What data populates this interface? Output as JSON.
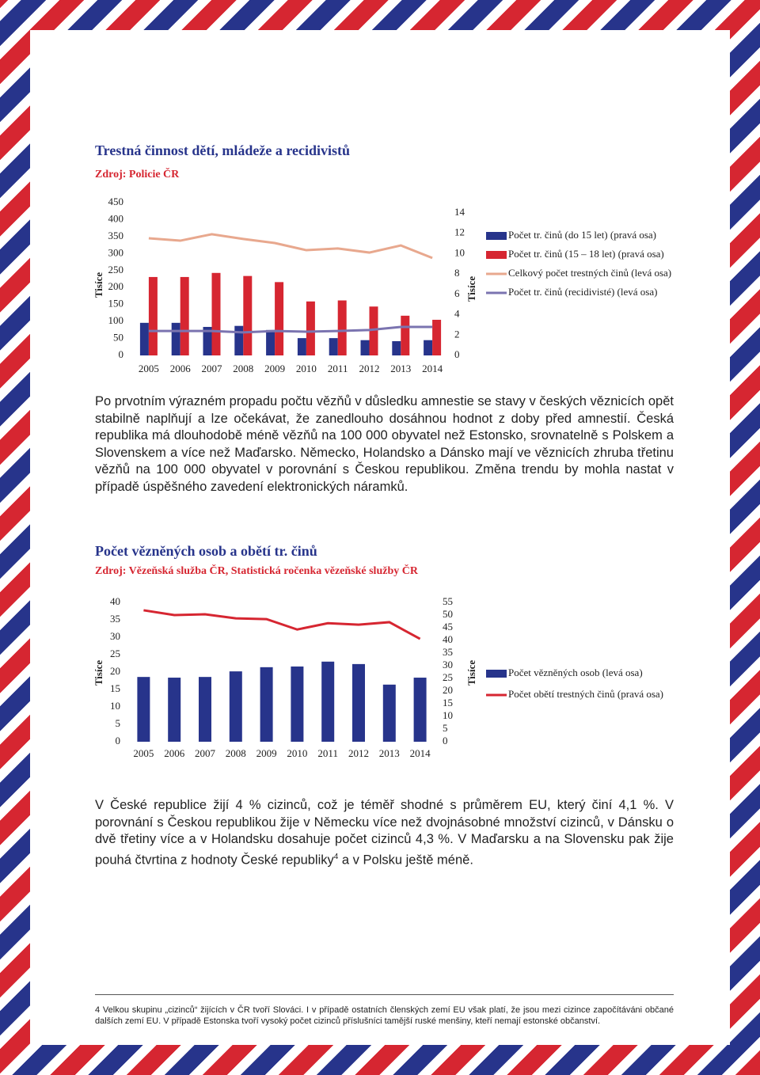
{
  "chart_data": [
    {
      "type": "bar",
      "title": "Trestná činnost dětí, mládeže a recidivistů",
      "subtitle": "Zdroj: Policie ČR",
      "categories": [
        "2005",
        "2006",
        "2007",
        "2008",
        "2009",
        "2010",
        "2011",
        "2012",
        "2013",
        "2014"
      ],
      "ylabel": "Tisíce",
      "y2label": "Tisíce",
      "ylim": [
        0,
        450
      ],
      "yticks": [
        0,
        50,
        100,
        150,
        200,
        250,
        300,
        350,
        400,
        450
      ],
      "y2lim": [
        0,
        15
      ],
      "y2ticks": [
        0,
        2,
        4,
        6,
        8,
        10,
        12,
        14
      ],
      "series": [
        {
          "name": "Počet tr. činů (do 15 let) (pravá osa)",
          "type": "bar",
          "axis": "y2",
          "color": "#27348b",
          "values": [
            3.2,
            3.2,
            2.8,
            2.9,
            2.5,
            1.7,
            1.7,
            1.5,
            1.4,
            1.5
          ]
        },
        {
          "name": "Počet tr. činů (15 – 18 let) (pravá osa)",
          "type": "bar",
          "axis": "y2",
          "color": "#d62631",
          "values": [
            7.7,
            7.7,
            8.1,
            7.8,
            7.2,
            5.3,
            5.4,
            4.8,
            3.9,
            3.5
          ]
        },
        {
          "name": "Celkový počet trestných činů (levá osa)",
          "type": "line",
          "color": "#e8a88e",
          "values": [
            345,
            338,
            357,
            343,
            331,
            310,
            315,
            303,
            324,
            287
          ]
        },
        {
          "name": "Počet tr. činů (recidivisté) (levá osa)",
          "type": "line",
          "color": "#7b74b0",
          "values": [
            72,
            72,
            72,
            68,
            72,
            70,
            72,
            75,
            84,
            84
          ]
        }
      ]
    },
    {
      "type": "bar",
      "title": "Počet vězněných osob a obětí tr. činů",
      "subtitle": "Zdroj: Vězeňská služba ČR, Statistická ročenka vězeňské služby ČR",
      "categories": [
        "2005",
        "2006",
        "2007",
        "2008",
        "2009",
        "2010",
        "2011",
        "2012",
        "2013",
        "2014"
      ],
      "ylabel": "Tisíce",
      "y2label": "Tisíce",
      "ylim": [
        0,
        40
      ],
      "yticks": [
        0,
        5,
        10,
        15,
        20,
        25,
        30,
        35,
        40
      ],
      "y2lim": [
        0,
        55
      ],
      "y2ticks": [
        0,
        5,
        10,
        15,
        20,
        25,
        30,
        35,
        40,
        45,
        50,
        55
      ],
      "series": [
        {
          "name": "Počet vězněných osob (levá osa)",
          "type": "bar",
          "color": "#27348b",
          "values": [
            18.6,
            18.4,
            18.6,
            20.2,
            21.4,
            21.6,
            23.0,
            22.3,
            16.4,
            18.4
          ]
        },
        {
          "name": "Počet obětí trestných činů (pravá osa)",
          "type": "line",
          "axis": "y2",
          "color": "#d62631",
          "values": [
            51.9,
            50.0,
            50.3,
            48.7,
            48.4,
            44.3,
            46.8,
            46.2,
            47.2,
            40.6
          ]
        }
      ]
    }
  ],
  "paragraphs": [
    {
      "text": "Po prvotním výrazném propadu počtu vězňů v důsledku amnestie se stavy v českých věznicích opět stabilně naplňují a lze očekávat, že zanedlouho dosáhnou hodnot z doby před amnestií. Česká republika má dlouhodobě méně vězňů na 100 000 obyvatel než Estonsko, srovnatelně s Polskem a Slovenskem a více než Maďarsko. Německo, Holandsko a Dánsko mají ve věznicích zhruba třetinu vězňů na 100 000 obyvatel v porovnání s Českou republikou. Změna trendu by mohla nastat v případě úspěšného zavedení elektronických náramků."
    },
    {
      "text": "V České republice žijí 4 % cizinců, což je téměř shodné s průměrem EU, který činí 4,1 %. V porovnání s Českou republikou žije v Německu více než dvojnásobné množství cizinců, v Dánsku o dvě třetiny více a v Holandsku dosahuje počet cizinců 4,3 %. V Maďarsku a na Slovensku pak žije pouhá čtvrtina z hodnoty České republiky",
      "note_ref": "4",
      "text_after": " a v Polsku ještě méně."
    }
  ],
  "footnote": {
    "number": "4",
    "text": "Velkou skupinu „cizinců“ žijících v ČR tvoří Slováci. I v případě ostatních členských zemí EU však platí, že jsou mezi cizince započítáváni občané dalších zemí EU. V případě Estonska tvoří vysoký počet cizinců příslušníci tamější ruské menšiny, kteří nemají estonské občanství."
  }
}
